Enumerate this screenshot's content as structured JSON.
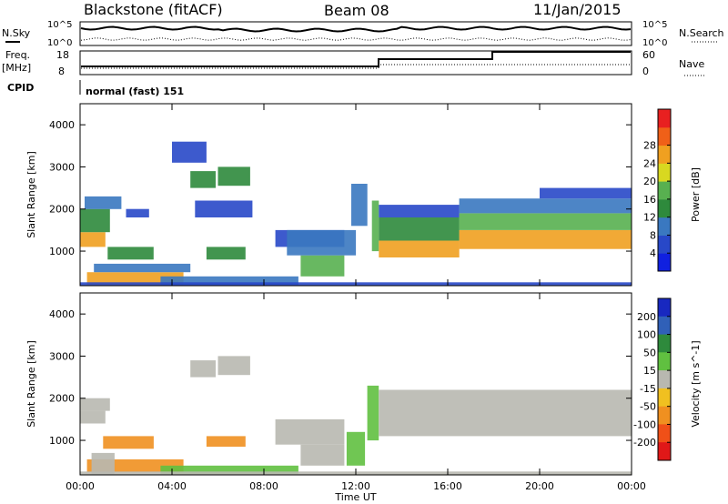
{
  "header": {
    "station": "Blackstone (fitACF)",
    "beam": "Beam 08",
    "date": "11/Jan/2015"
  },
  "summary": {
    "nsky_label": "N.Sky",
    "nsearch_label": "N.Search",
    "nsky_ticks": [
      "10^5",
      "10^0"
    ],
    "nsearch_ticks": [
      "10^5",
      "10^0"
    ],
    "freq_label": "Freq.",
    "freq_unit": "[MHz]",
    "freq_ticks": [
      "18",
      "8"
    ],
    "nave_label": "Nave",
    "nave_ticks": [
      "60",
      "0"
    ],
    "cpid_label": "CPID",
    "cpid_text": "normal (fast) 151"
  },
  "chart_data": [
    {
      "type": "heatmap",
      "name_label": "power-panel",
      "xlabel": "",
      "ylabel": "Slant Range [km]",
      "x_ticks": [
        "00:00",
        "04:00",
        "08:00",
        "12:00",
        "16:00",
        "20:00",
        "00:00"
      ],
      "y_ticks": [
        1000,
        2000,
        3000,
        4000
      ],
      "xlim_hours": [
        0,
        24
      ],
      "ylim_km": [
        180,
        4500
      ],
      "colorbar": {
        "label": "Power [dB]",
        "ticks": [
          4,
          8,
          12,
          16,
          20,
          24,
          28
        ],
        "colors": [
          "#1020e0",
          "#2848c8",
          "#3a78c0",
          "#2e8a3c",
          "#58b050",
          "#d8d820",
          "#f0a020",
          "#f06018",
          "#e82020"
        ]
      },
      "regions": [
        {
          "t0": 0.0,
          "t1": 1.1,
          "r0": 1100,
          "r1": 1450,
          "value": 24
        },
        {
          "t0": 0.0,
          "t1": 1.3,
          "r0": 1450,
          "r1": 2000,
          "value": 12
        },
        {
          "t0": 0.2,
          "t1": 1.8,
          "r0": 2000,
          "r1": 2300,
          "value": 8
        },
        {
          "t0": 0.3,
          "t1": 4.5,
          "r0": 200,
          "r1": 500,
          "value": 26
        },
        {
          "t0": 0.6,
          "t1": 4.8,
          "r0": 500,
          "r1": 700,
          "value": 10
        },
        {
          "t0": 1.2,
          "t1": 3.2,
          "r0": 800,
          "r1": 1100,
          "value": 12
        },
        {
          "t0": 2.0,
          "t1": 3.0,
          "r0": 1800,
          "r1": 2000,
          "value": 6
        },
        {
          "t0": 4.0,
          "t1": 5.5,
          "r0": 3100,
          "r1": 3600,
          "value": 6
        },
        {
          "t0": 4.8,
          "t1": 5.9,
          "r0": 2500,
          "r1": 2900,
          "value": 14
        },
        {
          "t0": 6.0,
          "t1": 7.4,
          "r0": 2550,
          "r1": 3000,
          "value": 12
        },
        {
          "t0": 5.0,
          "t1": 7.5,
          "r0": 1800,
          "r1": 2200,
          "value": 6
        },
        {
          "t0": 5.5,
          "t1": 7.2,
          "r0": 800,
          "r1": 1100,
          "value": 14
        },
        {
          "t0": 3.5,
          "t1": 9.5,
          "r0": 200,
          "r1": 400,
          "value": 8
        },
        {
          "t0": 8.5,
          "t1": 11.5,
          "r0": 1100,
          "r1": 1500,
          "value": 6
        },
        {
          "t0": 9.6,
          "t1": 11.5,
          "r0": 400,
          "r1": 900,
          "value": 16
        },
        {
          "t0": 9.0,
          "t1": 12.0,
          "r0": 900,
          "r1": 1500,
          "value": 10
        },
        {
          "t0": 11.8,
          "t1": 12.5,
          "r0": 1600,
          "r1": 2600,
          "value": 8
        },
        {
          "t0": 12.7,
          "t1": 13.0,
          "r0": 1000,
          "r1": 2200,
          "value": 18
        },
        {
          "t0": 13.0,
          "t1": 16.5,
          "r0": 850,
          "r1": 1250,
          "value": 26
        },
        {
          "t0": 13.0,
          "t1": 16.5,
          "r0": 1250,
          "r1": 1800,
          "value": 14
        },
        {
          "t0": 13.0,
          "t1": 16.5,
          "r0": 1800,
          "r1": 2100,
          "value": 6
        },
        {
          "t0": 16.5,
          "t1": 24.0,
          "r0": 1050,
          "r1": 1500,
          "value": 25
        },
        {
          "t0": 16.5,
          "t1": 24.0,
          "r0": 1500,
          "r1": 1900,
          "value": 16
        },
        {
          "t0": 16.5,
          "t1": 24.0,
          "r0": 1900,
          "r1": 2250,
          "value": 8
        },
        {
          "t0": 20.0,
          "t1": 24.0,
          "r0": 2250,
          "r1": 2500,
          "value": 5
        },
        {
          "t0": 0.0,
          "t1": 24.0,
          "r0": 180,
          "r1": 260,
          "value": 7
        }
      ]
    },
    {
      "type": "heatmap",
      "name_label": "velocity-panel",
      "xlabel": "Time UT",
      "ylabel": "Slant Range [km]",
      "x_ticks": [
        "00:00",
        "04:00",
        "08:00",
        "12:00",
        "16:00",
        "20:00",
        "00:00"
      ],
      "y_ticks": [
        1000,
        2000,
        3000,
        4000
      ],
      "xlim_hours": [
        0,
        24
      ],
      "ylim_km": [
        180,
        4500
      ],
      "colorbar": {
        "label": "Velocity [m s^-1]",
        "ticks": [
          200,
          100,
          50,
          15,
          -15,
          -50,
          -100,
          -200
        ],
        "colors": [
          "#1828c0",
          "#3060b8",
          "#2e8a3c",
          "#60c040",
          "#b8b8b0",
          "#f0c020",
          "#f09020",
          "#f05018",
          "#e01818"
        ]
      },
      "regions": [
        {
          "t0": 0.0,
          "t1": 1.1,
          "r0": 1400,
          "r1": 1700,
          "value": 0
        },
        {
          "t0": 0.0,
          "t1": 1.3,
          "r0": 1700,
          "r1": 2000,
          "value": 0
        },
        {
          "t0": 0.3,
          "t1": 4.5,
          "r0": 250,
          "r1": 550,
          "value": -80
        },
        {
          "t0": 1.0,
          "t1": 3.2,
          "r0": 800,
          "r1": 1100,
          "value": -80
        },
        {
          "t0": 0.5,
          "t1": 1.5,
          "r0": 200,
          "r1": 700,
          "value": 0
        },
        {
          "t0": 4.8,
          "t1": 5.9,
          "r0": 2500,
          "r1": 2900,
          "value": 0
        },
        {
          "t0": 6.0,
          "t1": 7.4,
          "r0": 2550,
          "r1": 3000,
          "value": 0
        },
        {
          "t0": 5.5,
          "t1": 7.2,
          "r0": 850,
          "r1": 1100,
          "value": -80
        },
        {
          "t0": 3.5,
          "t1": 9.5,
          "r0": 200,
          "r1": 400,
          "value": 30
        },
        {
          "t0": 8.5,
          "t1": 11.5,
          "r0": 900,
          "r1": 1500,
          "value": 0
        },
        {
          "t0": 9.6,
          "t1": 11.5,
          "r0": 400,
          "r1": 900,
          "value": 0
        },
        {
          "t0": 11.6,
          "t1": 12.4,
          "r0": 400,
          "r1": 1200,
          "value": 40
        },
        {
          "t0": 12.5,
          "t1": 13.0,
          "r0": 1000,
          "r1": 2300,
          "value": 40
        },
        {
          "t0": 13.0,
          "t1": 24.0,
          "r0": 1100,
          "r1": 1800,
          "value": 0
        },
        {
          "t0": 13.0,
          "t1": 24.0,
          "r0": 1800,
          "r1": 2200,
          "value": 0
        },
        {
          "t0": 0.0,
          "t1": 24.0,
          "r0": 180,
          "r1": 260,
          "value": 0
        }
      ]
    }
  ]
}
